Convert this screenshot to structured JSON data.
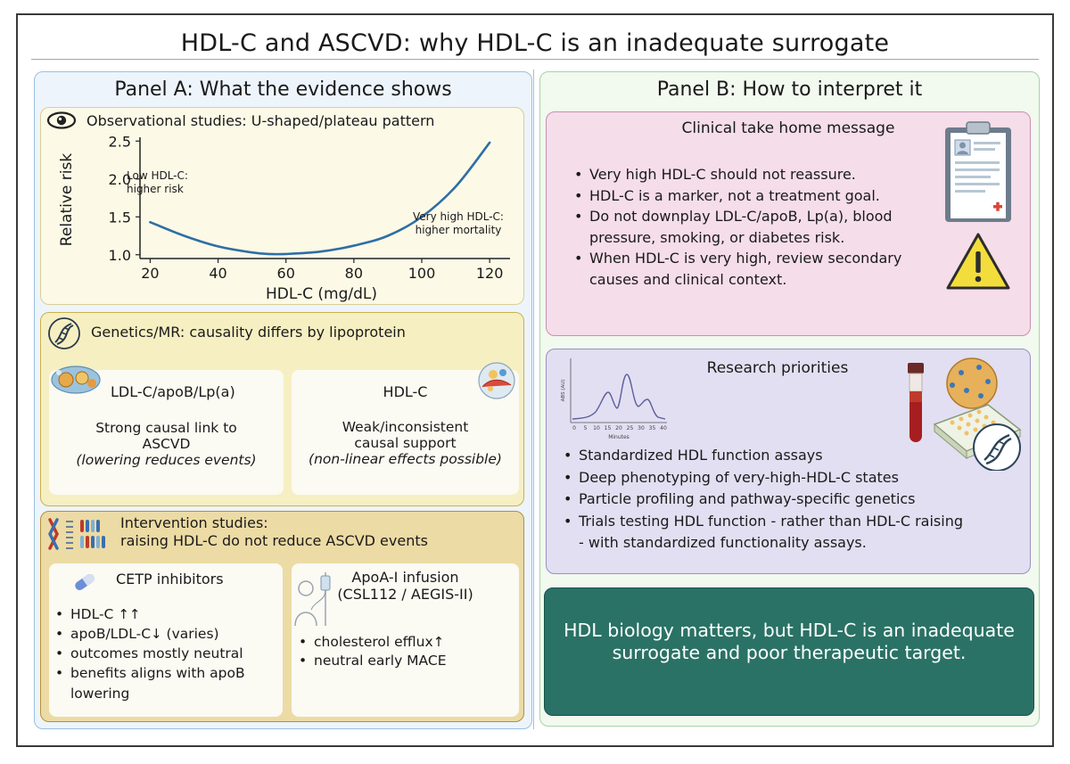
{
  "title": "HDL-C and ASCVD: why HDL-C is an inadequate surrogate",
  "panel_a": {
    "heading": "Panel A: What the evidence shows",
    "observational": {
      "title": "Observational studies: U-shaped/plateau pattern",
      "annotation_low_1": "Low HDL-C:",
      "annotation_low_2": "higher risk",
      "annotation_high_1": "Very high HDL-C:",
      "annotation_high_2": "higher mortality"
    },
    "genetics": {
      "title": "Genetics/MR: causality differs by lipoprotein",
      "ldl_card": {
        "title": "LDL-C/apoB/Lp(a)",
        "line1": "Strong causal link to",
        "line2": "ASCVD",
        "line3": "(lowering reduces events)"
      },
      "hdl_card": {
        "title": "HDL-C",
        "line1": "Weak/inconsistent",
        "line2": "causal support",
        "line3": "(non-linear effects possible)"
      }
    },
    "intervention": {
      "title_1": "Intervention studies:",
      "title_2": "raising HDL-C do not reduce ASCVD events",
      "cetp": {
        "title": "CETP inhibitors",
        "item1": "HDL-C",
        "item1_arrow": "↑↑",
        "item2": "apoB/LDL-C",
        "item2_arrow": "↓",
        "item2_suffix": " (varies)",
        "item3": "outcomes mostly neutral",
        "item4": "benefits aligns with apoB lowering"
      },
      "apoa": {
        "title_1": "ApoA-I infusion",
        "title_2": "(CSL112 / AEGIS-II)",
        "item1": "cholesterol efflux",
        "item1_arrow": "↑",
        "item2": "neutral early MACE"
      }
    }
  },
  "panel_b": {
    "heading": "Panel B: How to interpret it",
    "clinical": {
      "title": "Clinical take home message",
      "items": [
        "Very high HDL-C should not reassure.",
        "HDL-C is a marker, not a treatment goal.",
        "Do not downplay LDL-C/apoB, Lp(a), blood pressure, smoking, or diabetes risk.",
        "When HDL-C is very high, review secondary causes and clinical context."
      ]
    },
    "research": {
      "title": "Research priorities",
      "items": [
        "Standardized HDL function assays",
        "Deep phenotyping of very-high-HDL-C states",
        "Particle profiling and pathway-specific genetics",
        "Trials testing HDL function -  rather than HDL-C raising - with standardized functionality assays."
      ],
      "spectrum": {
        "ylabel": "ABS (AU)",
        "xlabel": "Minutes",
        "ticks": [
          "0",
          "5",
          "10",
          "15",
          "20",
          "25",
          "30",
          "35",
          "40"
        ]
      }
    },
    "message": "HDL biology matters, but HDL-C is an inadequate surrogate and poor therapeutic target."
  },
  "chart_data": {
    "type": "line",
    "title": "",
    "xlabel": "HDL-C (mg/dL)",
    "ylabel": "Relative risk",
    "x": [
      20,
      30,
      40,
      50,
      55,
      60,
      70,
      80,
      90,
      100,
      110,
      120
    ],
    "series": [
      {
        "values": [
          1.43,
          1.25,
          1.11,
          1.03,
          1.01,
          1.01,
          1.04,
          1.12,
          1.25,
          1.5,
          1.9,
          2.48
        ]
      }
    ],
    "xlim": [
      17,
      126
    ],
    "ylim": [
      0.95,
      2.55
    ],
    "xticks": [
      20,
      40,
      60,
      80,
      100,
      120
    ],
    "yticks": [
      "1.0",
      "1.5",
      "2.0",
      "2.5"
    ],
    "grid": false,
    "line_color": "#2e6ea6"
  }
}
